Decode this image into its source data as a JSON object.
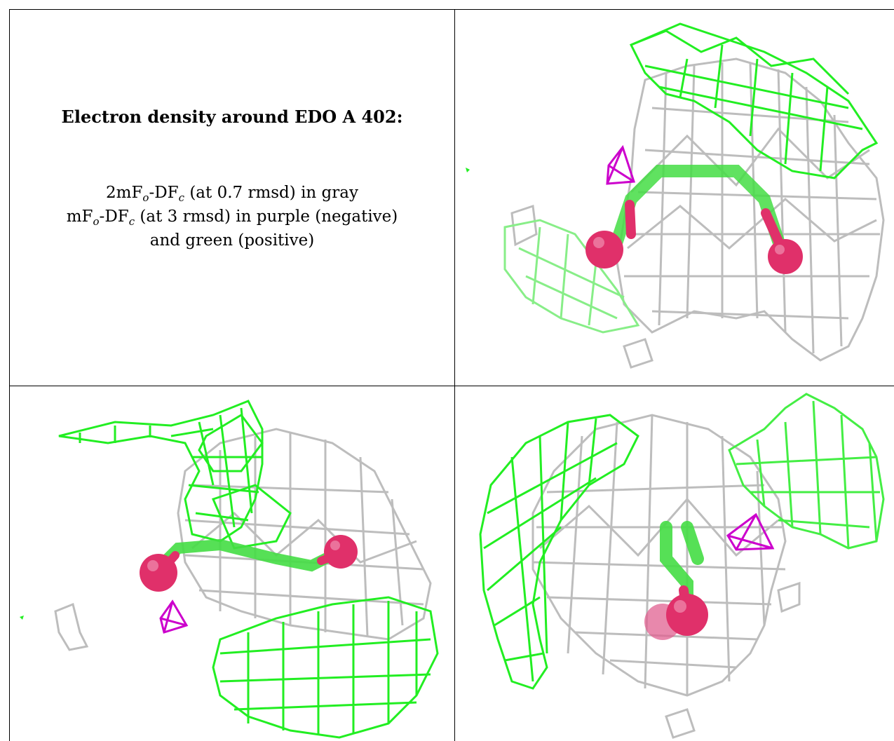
{
  "caption": {
    "title": "Electron density around EDO A 402:",
    "line1_prefix": "2mF",
    "line1_sub_o": "o",
    "line1_mid": "-DF",
    "line1_sub_c": "c",
    "line1_suffix": " (at 0.7 rmsd) in gray",
    "line2_prefix": "mF",
    "line2_sub_o": "o",
    "line2_mid": "-DF",
    "line2_sub_c": "c",
    "line2_suffix": " (at 3 rmsd) in purple (negative)",
    "line3": "and green (positive)"
  },
  "colors": {
    "gray_mesh": "#b8b8b8",
    "green_mesh": "#22ee22",
    "purple_mesh": "#cc00cc",
    "oxygen_atom": "#e0306a",
    "carbon_bond": "#44dd44"
  },
  "panels": [
    {
      "name": "view-top-right"
    },
    {
      "name": "view-bottom-left"
    },
    {
      "name": "view-bottom-right"
    }
  ]
}
